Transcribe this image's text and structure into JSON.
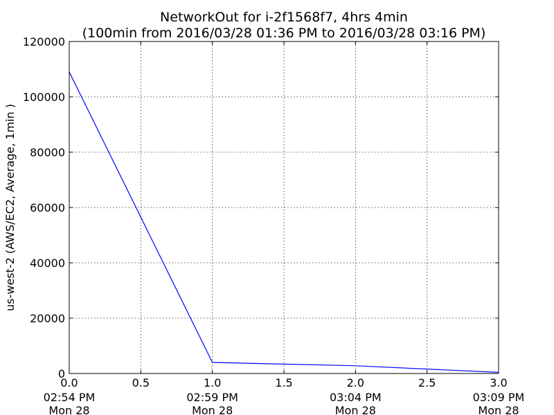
{
  "chart_data": {
    "type": "line",
    "title": "NetworkOut for i-2f1568f7, 4hrs 4min",
    "subtitle": "(100min from 2016/03/28 01:36 PM to 2016/03/28 03:16 PM)",
    "xlabel": "",
    "ylabel": "us-west-2 (AWS/EC2, Average, 1min )",
    "xlim": [
      0,
      3
    ],
    "ylim": [
      0,
      120000
    ],
    "grid": true,
    "x_ticks": [
      {
        "value": 0.0,
        "label": "0.0",
        "time": "02:54 PM",
        "day": "Mon 28"
      },
      {
        "value": 0.5,
        "label": "0.5"
      },
      {
        "value": 1.0,
        "label": "1.0",
        "time": "02:59 PM",
        "day": "Mon 28"
      },
      {
        "value": 1.5,
        "label": "1.5"
      },
      {
        "value": 2.0,
        "label": "2.0",
        "time": "03:04 PM",
        "day": "Mon 28"
      },
      {
        "value": 2.5,
        "label": "2.5"
      },
      {
        "value": 3.0,
        "label": "3.0",
        "time": "03:09 PM",
        "day": "Mon 28"
      }
    ],
    "y_ticks": [
      {
        "value": 0,
        "label": "0"
      },
      {
        "value": 20000,
        "label": "20000"
      },
      {
        "value": 40000,
        "label": "40000"
      },
      {
        "value": 60000,
        "label": "60000"
      },
      {
        "value": 80000,
        "label": "80000"
      },
      {
        "value": 100000,
        "label": "100000"
      },
      {
        "value": 120000,
        "label": "120000"
      }
    ],
    "series": [
      {
        "color": "#0000ff",
        "x": [
          0,
          1,
          2,
          3
        ],
        "values": [
          109000,
          4000,
          2800,
          400
        ]
      }
    ]
  }
}
